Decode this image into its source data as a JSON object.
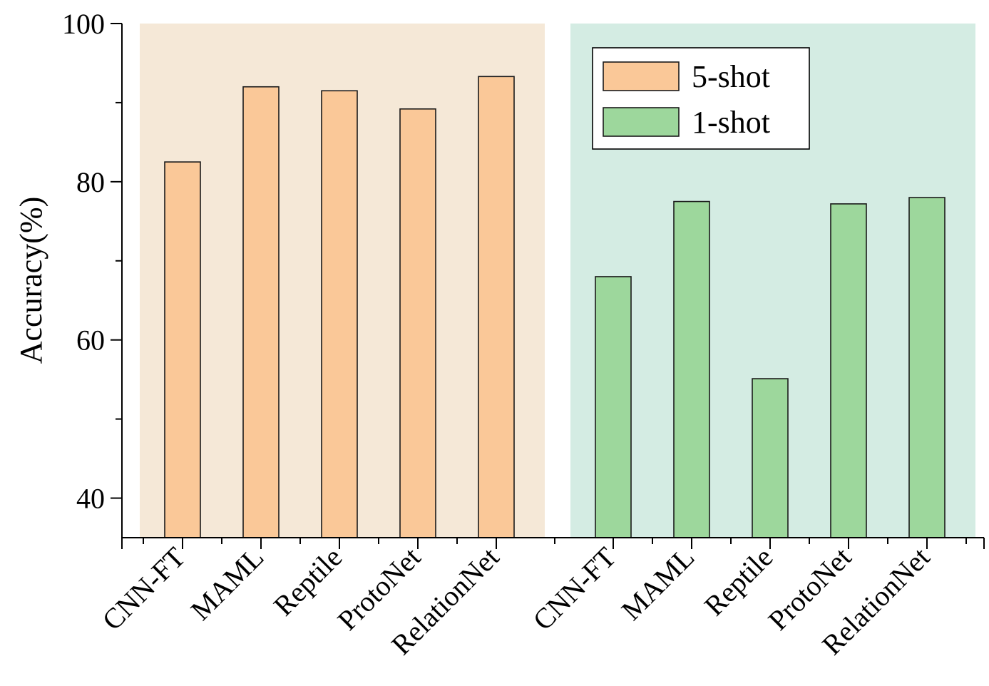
{
  "chart_data": {
    "type": "bar",
    "title": "",
    "xlabel": "",
    "ylabel": "Accuracy(%)",
    "ylim": [
      35,
      100
    ],
    "y_ticks": [
      40,
      60,
      80,
      100
    ],
    "y_minor_ticks": [
      50,
      70,
      90
    ],
    "grid": false,
    "legend_placement": "top-right",
    "groups": [
      {
        "series": "5-shot",
        "color": "#FAC898",
        "background_color": "#F5E8D7",
        "categories": [
          "CNN-FT",
          "MAML",
          "Reptile",
          "ProtoNet",
          "RelationNet"
        ],
        "values": [
          82.5,
          92.0,
          91.5,
          89.2,
          93.3
        ]
      },
      {
        "series": "1-shot",
        "color": "#9DD79C",
        "background_color": "#D4ECE3",
        "categories": [
          "CNN-FT",
          "MAML",
          "Reptile",
          "ProtoNet",
          "RelationNet"
        ],
        "values": [
          68.0,
          77.5,
          55.1,
          77.2,
          78.0
        ]
      }
    ],
    "legend": [
      {
        "label": "5-shot",
        "color": "#FAC898"
      },
      {
        "label": "1-shot",
        "color": "#9DD79C"
      }
    ]
  }
}
